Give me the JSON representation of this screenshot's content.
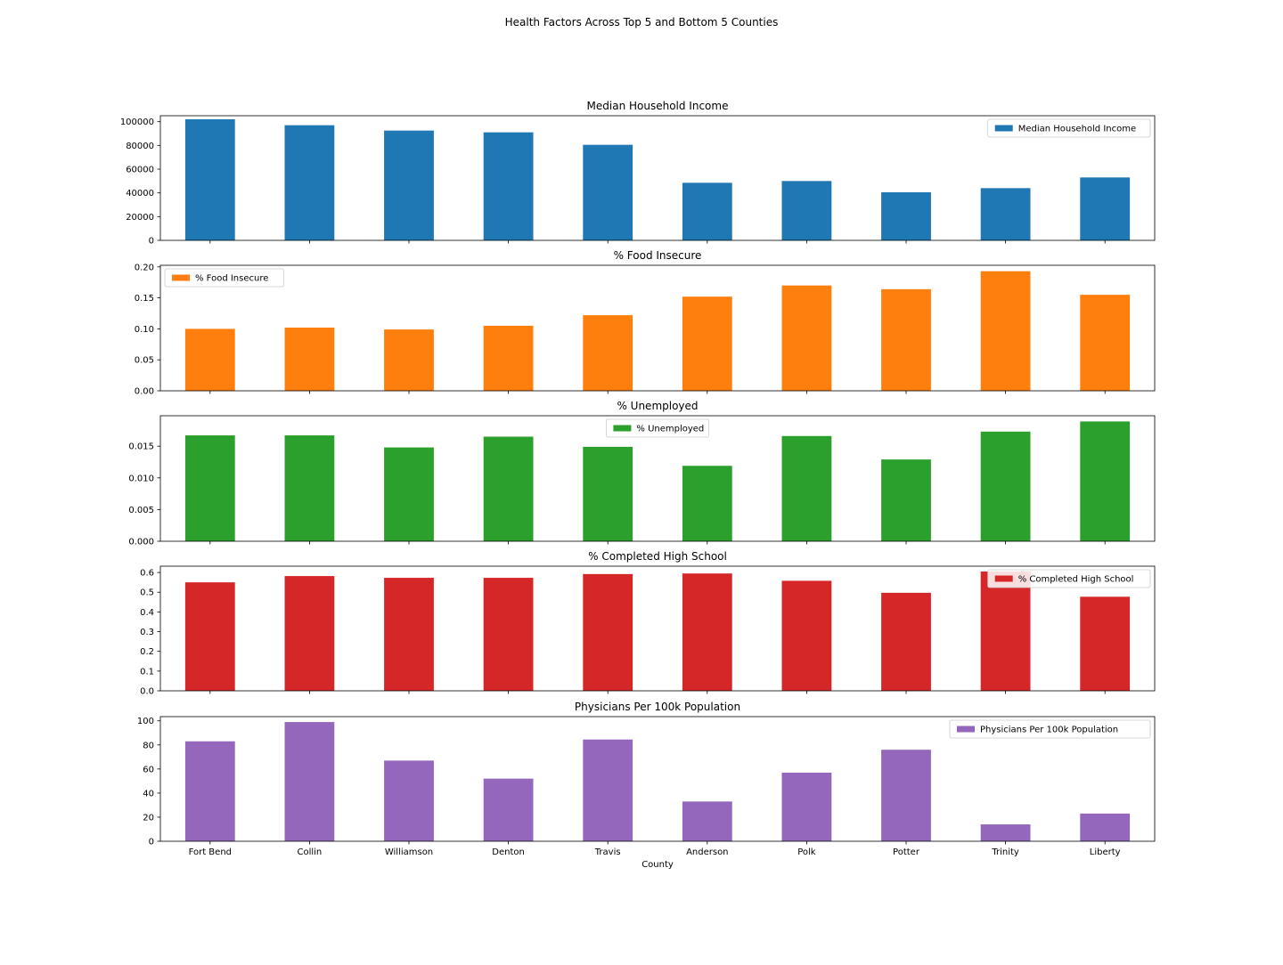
{
  "figure": {
    "suptitle": "Health Factors Across Top 5 and Bottom 5 Counties",
    "xlabel": "County"
  },
  "chart_data": [
    {
      "type": "bar",
      "title": "Median Household Income",
      "categories": [
        "Fort Bend",
        "Collin",
        "Williamson",
        "Denton",
        "Travis",
        "Anderson",
        "Polk",
        "Potter",
        "Trinity",
        "Liberty"
      ],
      "series": [
        {
          "name": "Median Household Income",
          "color": "#1f77b4",
          "values": [
            102000,
            97000,
            92500,
            91000,
            80500,
            48500,
            50000,
            40500,
            44000,
            53000
          ]
        }
      ],
      "ylim": [
        0,
        105000
      ],
      "yticks": [
        0,
        20000,
        40000,
        60000,
        80000,
        100000
      ],
      "ytick_labels": [
        "0",
        "20000",
        "40000",
        "60000",
        "80000",
        "100000"
      ],
      "legend": "top-right",
      "show_xticklabels": false
    },
    {
      "type": "bar",
      "title": "% Food Insecure",
      "categories": [
        "Fort Bend",
        "Collin",
        "Williamson",
        "Denton",
        "Travis",
        "Anderson",
        "Polk",
        "Potter",
        "Trinity",
        "Liberty"
      ],
      "series": [
        {
          "name": "% Food Insecure",
          "color": "#ff7f0e",
          "values": [
            0.1,
            0.102,
            0.099,
            0.105,
            0.122,
            0.152,
            0.17,
            0.164,
            0.193,
            0.155
          ]
        }
      ],
      "ylim": [
        0,
        0.2026
      ],
      "yticks": [
        0,
        0.05,
        0.1,
        0.15,
        0.2
      ],
      "ytick_labels": [
        "0.00",
        "0.05",
        "0.10",
        "0.15",
        "0.20"
      ],
      "legend": "top-left",
      "show_xticklabels": false
    },
    {
      "type": "bar",
      "title": "% Unemployed",
      "categories": [
        "Fort Bend",
        "Collin",
        "Williamson",
        "Denton",
        "Travis",
        "Anderson",
        "Polk",
        "Potter",
        "Trinity",
        "Liberty"
      ],
      "series": [
        {
          "name": "% Unemployed",
          "color": "#2ca02c",
          "values": [
            0.0167,
            0.0167,
            0.0148,
            0.0165,
            0.0149,
            0.0119,
            0.0166,
            0.0129,
            0.0173,
            0.0189
          ]
        }
      ],
      "ylim": [
        0,
        0.0198
      ],
      "yticks": [
        0,
        0.005,
        0.01,
        0.015
      ],
      "ytick_labels": [
        "0.000",
        "0.005",
        "0.010",
        "0.015"
      ],
      "legend": "top-center",
      "show_xticklabels": false
    },
    {
      "type": "bar",
      "title": "% Completed High School",
      "categories": [
        "Fort Bend",
        "Collin",
        "Williamson",
        "Denton",
        "Travis",
        "Anderson",
        "Polk",
        "Potter",
        "Trinity",
        "Liberty"
      ],
      "series": [
        {
          "name": "% Completed High School",
          "color": "#d62728",
          "values": [
            0.55,
            0.582,
            0.573,
            0.573,
            0.592,
            0.595,
            0.558,
            0.497,
            0.605,
            0.477
          ]
        }
      ],
      "ylim": [
        0,
        0.632
      ],
      "yticks": [
        0,
        0.1,
        0.2,
        0.3,
        0.4,
        0.5,
        0.6
      ],
      "ytick_labels": [
        "0.0",
        "0.1",
        "0.2",
        "0.3",
        "0.4",
        "0.5",
        "0.6"
      ],
      "legend": "top-right",
      "show_xticklabels": false
    },
    {
      "type": "bar",
      "title": "Physicians Per 100k Population",
      "categories": [
        "Fort Bend",
        "Collin",
        "Williamson",
        "Denton",
        "Travis",
        "Anderson",
        "Polk",
        "Potter",
        "Trinity",
        "Liberty"
      ],
      "series": [
        {
          "name": "Physicians Per 100k Population",
          "color": "#9467bd",
          "values": [
            83,
            99,
            67,
            52,
            84.5,
            33,
            57,
            76,
            14,
            23
          ]
        }
      ],
      "ylim": [
        0,
        103.5
      ],
      "yticks": [
        0,
        20,
        40,
        60,
        80,
        100
      ],
      "ytick_labels": [
        "0",
        "20",
        "40",
        "60",
        "80",
        "100"
      ],
      "legend": "top-right",
      "show_xticklabels": true
    }
  ]
}
